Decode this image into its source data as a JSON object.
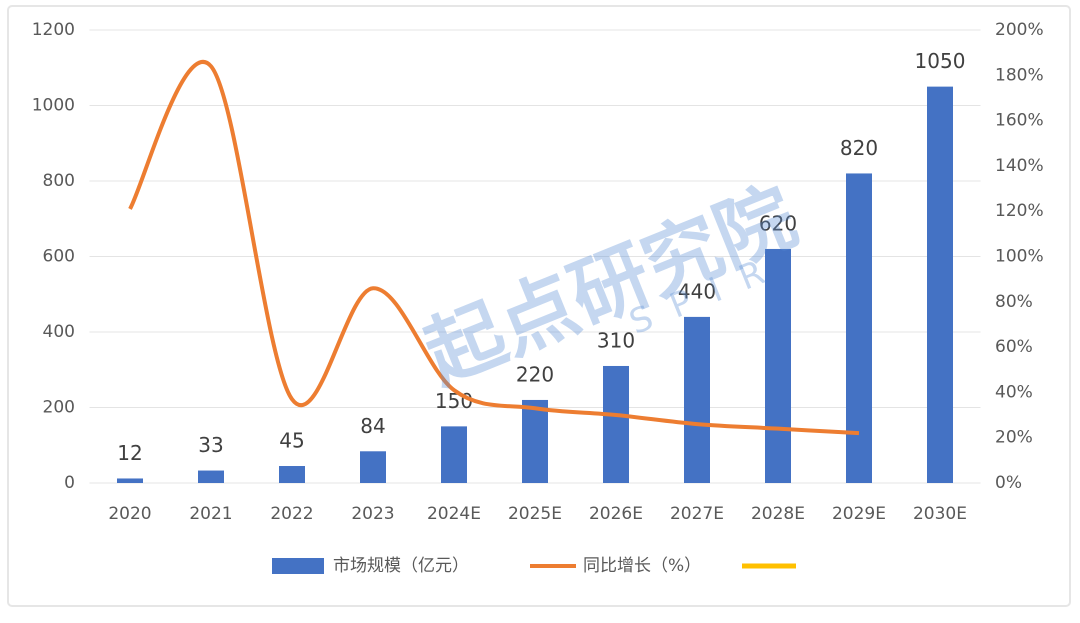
{
  "chart_data": {
    "type": "bar-line",
    "categories": [
      "2020",
      "2021",
      "2022",
      "2023",
      "2024E",
      "2025E",
      "2026E",
      "2027E",
      "2028E",
      "2029E",
      "2030E"
    ],
    "series": [
      {
        "name": "市场规模（亿元）",
        "type": "bar",
        "color": "#4472c4",
        "values": [
          12,
          33,
          45,
          84,
          150,
          220,
          310,
          440,
          620,
          820,
          1050
        ]
      },
      {
        "name": "同比增长（%）",
        "type": "line",
        "axis": "y2",
        "color": "#ed7d31",
        "values": [
          121,
          184,
          37,
          86,
          41,
          33,
          30,
          26,
          24,
          22,
          null
        ]
      }
    ],
    "ylim": [
      0,
      1200
    ],
    "yticks": [
      0,
      200,
      400,
      600,
      800,
      1000,
      1200
    ],
    "y2lim": [
      0,
      200
    ],
    "y2ticks": [
      {
        "value": 0,
        "label": "0%"
      },
      {
        "value": 20,
        "label": "20%"
      },
      {
        "value": 40,
        "label": "40%"
      },
      {
        "value": 60,
        "label": "60%"
      },
      {
        "value": 80,
        "label": "80%"
      },
      {
        "value": 100,
        "label": "100%"
      },
      {
        "value": 120,
        "label": "120%"
      },
      {
        "value": 140,
        "label": "140%"
      },
      {
        "value": 160,
        "label": "160%"
      },
      {
        "value": 180,
        "label": "180%"
      },
      {
        "value": 200,
        "label": "200%"
      }
    ],
    "grid": true,
    "legend": "bottom",
    "watermark": {
      "text": "起点研究院",
      "sub": "SPIR"
    }
  }
}
